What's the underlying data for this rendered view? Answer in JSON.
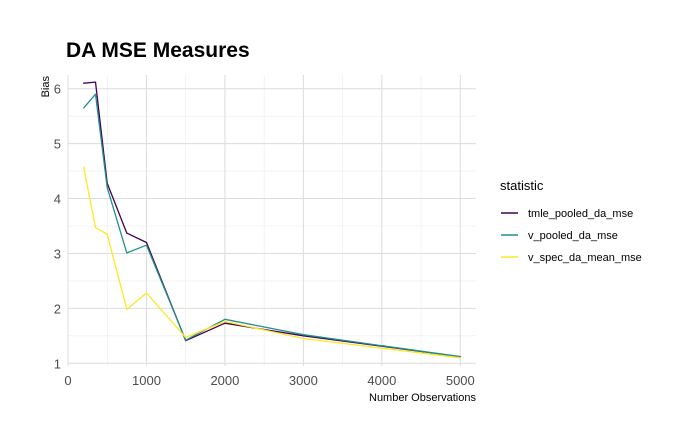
{
  "chart_data": {
    "type": "line",
    "title": "DA MSE Measures",
    "xlabel": "Number Observations",
    "ylabel": "Bias",
    "xlim": [
      0,
      5200
    ],
    "ylim": [
      0.95,
      6.25
    ],
    "x_ticks": [
      0,
      1000,
      2000,
      3000,
      4000,
      5000
    ],
    "x_tick_labels": [
      "0",
      "1000",
      "2000",
      "3000",
      "4000",
      "5000"
    ],
    "x_minor_ticks": [
      500,
      1500,
      2500,
      3500,
      4500
    ],
    "y_ticks": [
      1,
      2,
      3,
      4,
      5,
      6
    ],
    "y_tick_labels": [
      "1",
      "2",
      "3",
      "4",
      "5",
      "6"
    ],
    "y_minor_ticks": [
      1.5,
      2.5,
      3.5,
      4.5,
      5.5
    ],
    "grid": true,
    "legend": {
      "title": "statistic",
      "position": "right"
    },
    "x": [
      200,
      350,
      500,
      750,
      1000,
      1500,
      2000,
      3000,
      5000
    ],
    "series": [
      {
        "name": "tmle_pooled_da_mse",
        "color": "#440154",
        "values": [
          6.1,
          6.12,
          4.28,
          3.37,
          3.2,
          1.41,
          1.73,
          1.5,
          1.12
        ]
      },
      {
        "name": "v_pooled_da_mse",
        "color": "#21908C",
        "values": [
          5.65,
          5.9,
          4.2,
          3.01,
          3.15,
          1.42,
          1.8,
          1.52,
          1.12
        ]
      },
      {
        "name": "v_spec_da_mean_mse",
        "color": "#FDE725",
        "values": [
          4.57,
          3.47,
          3.35,
          1.98,
          2.28,
          1.47,
          1.76,
          1.45,
          1.1
        ]
      }
    ]
  }
}
